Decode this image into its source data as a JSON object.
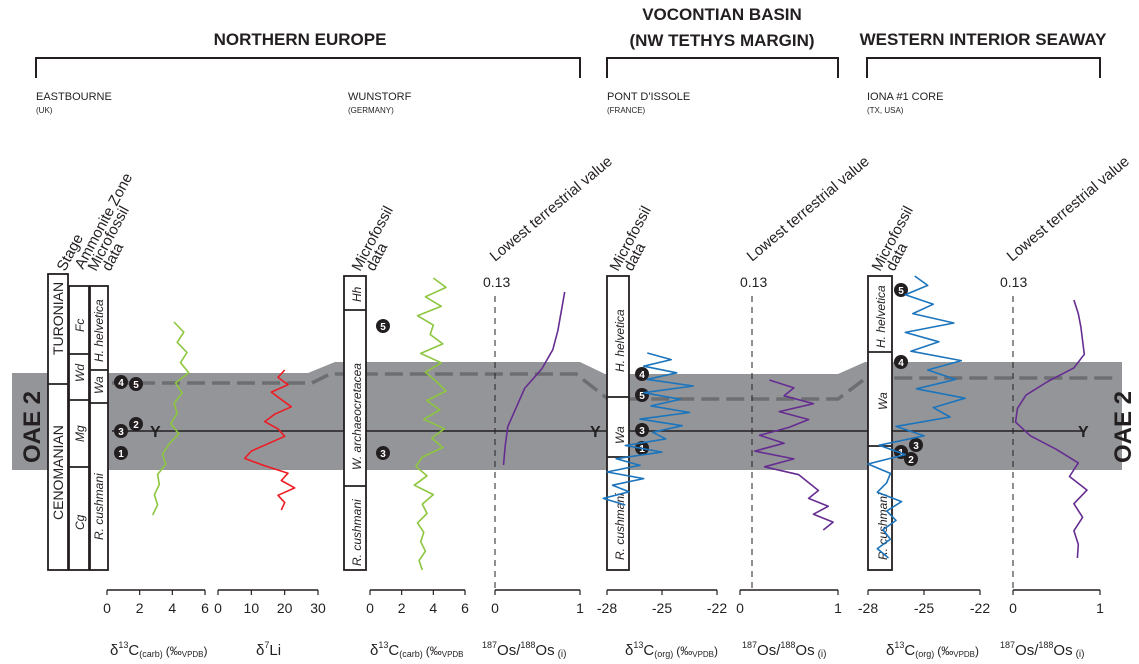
{
  "regions": {
    "northern_europe": "NORTHERN EUROPE",
    "vocontian_l1": "VOCONTIAN BASIN",
    "vocontian_l2": "(NW TETHYS MARGIN)",
    "western_interior": "WESTERN INTERIOR SEAWAY"
  },
  "sites": {
    "eastbourne": {
      "name": "EASTBOURNE",
      "country": "(UK)"
    },
    "wunstorf": {
      "name": "WUNSTORF",
      "country": "(GERMANY)"
    },
    "pont": {
      "name": "PONT D'ISSOLE",
      "country": "(FRANCE)"
    },
    "iona": {
      "name": "IONA #1 CORE",
      "country": "(TX, USA)"
    }
  },
  "column_headers": {
    "stage": "Stage",
    "ammonite": "Ammonite Zone",
    "micro1": "Microfossil",
    "micro2": "data",
    "lowest": "Lowest terrestrial value",
    "lowest_value": "0.13"
  },
  "oae_label": "OAE 2",
  "datum_label": "Y",
  "stages": [
    "TURONIAN",
    "CENOMANIAN"
  ],
  "ammonite_zones": [
    "Fc",
    "Wd",
    "Mg",
    "Cg"
  ],
  "microfossil_zones": {
    "eastbourne": [
      "H. helvetica",
      "Wa",
      "R. cushmani"
    ],
    "wunstorf": [
      "Hh",
      "W. archaeocretacea",
      "R. cushmani"
    ],
    "pont": [
      "H. helvetica",
      "Wa",
      "R. cushmani"
    ],
    "iona": [
      "H. helvetica",
      "Wa",
      "R. cushmani"
    ]
  },
  "events": {
    "eastbourne": [
      "4",
      "5",
      "2",
      "3",
      "1"
    ],
    "wunstorf": [
      "5",
      "3"
    ],
    "pont": [
      "4",
      "5",
      "3",
      "1"
    ],
    "iona": [
      "5",
      "4",
      "1",
      "3",
      "2"
    ]
  },
  "axes": {
    "d13c_carb_ticks": [
      "0",
      "2",
      "4",
      "6"
    ],
    "d7li_ticks": [
      "0",
      "10",
      "20",
      "30"
    ],
    "os_ticks": [
      "0",
      "1"
    ],
    "d13c_org_ticks": [
      "-28",
      "-25",
      "-22"
    ],
    "d13c_carb_label": {
      "main": "δ",
      "sup": "13",
      "c": "C",
      "sub": "(carb)",
      "unit": "(‰",
      "unitsub": "VPDB",
      "close": ")"
    },
    "d7li_label": {
      "main": "δ",
      "sup": "7",
      "c": "Li"
    },
    "os_label": {
      "sup1": "187",
      "os1": "Os/",
      "sup2": "188",
      "os2": "Os",
      "sub": "(i)"
    },
    "d13c_org_label": {
      "main": "δ",
      "sup": "13",
      "c": "C",
      "sub": "(org)",
      "unit": "(‰",
      "unitsub": "VPDB",
      "close": ")"
    }
  },
  "colors": {
    "carb": "#8dc63f",
    "lithium": "#ed1c24",
    "osmium": "#662d91",
    "org": "#1c75bc",
    "band": "#939598",
    "dash": "#6d6e71"
  },
  "chart_data": [
    {
      "type": "line",
      "site": "EASTBOURNE (UK)",
      "xlabel": "δ13C (carb) (‰VPDB)",
      "xlim": [
        0,
        6
      ],
      "series": [
        {
          "x": [
            4.1,
            4.7,
            4.3,
            4.9,
            4.5,
            5.0,
            4.2,
            4.6,
            4.1,
            4.3,
            3.9,
            4.4,
            3.8,
            3.4,
            3.6,
            3.1,
            3.2,
            2.9,
            3.1,
            2.8
          ]
        }
      ]
    },
    {
      "type": "line",
      "site": "EASTBOURNE (UK)",
      "xlabel": "δ7Li",
      "xlim": [
        0,
        30
      ],
      "series": [
        {
          "x": [
            20,
            18,
            21,
            16,
            19,
            22,
            17,
            14,
            18,
            20,
            15,
            10,
            8,
            14,
            21,
            19,
            23,
            18,
            20,
            19
          ]
        }
      ]
    },
    {
      "type": "line",
      "site": "WUNSTORF (GERMANY)",
      "xlabel": "δ13C (carb) (‰VPDB)",
      "xlim": [
        0,
        6
      ],
      "series": [
        {
          "x": [
            4.0,
            4.8,
            3.5,
            4.5,
            3.0,
            4.0,
            3.8,
            4.6,
            3.2,
            4.5,
            3.5,
            4.2,
            4.8,
            3.6,
            4.4,
            3.4,
            4.7,
            3.9,
            4.6,
            3.3,
            2.9,
            3.6,
            2.8,
            4.0,
            3.3,
            3.6,
            3.0,
            3.4,
            3.2,
            3.5,
            3.1,
            3.3
          ]
        }
      ]
    },
    {
      "type": "line",
      "site": "WUNSTORF (GERMANY)",
      "xlabel": "187Os/188Os (i)",
      "xlim": [
        0,
        1
      ],
      "series": [
        {
          "x": [
            0.82,
            0.78,
            0.74,
            0.68,
            0.55,
            0.35,
            0.25,
            0.15,
            0.12,
            0.1
          ]
        }
      ]
    },
    {
      "type": "line",
      "site": "PONT D'ISSOLE (FRANCE)",
      "xlabel": "δ13C (org) (‰VPDB)",
      "xlim": [
        -28,
        -22
      ],
      "series": [
        {
          "x": [
            -25.8,
            -24.5,
            -26.0,
            -24.2,
            -25.8,
            -23.3,
            -26.0,
            -24.0,
            -25.6,
            -23.5,
            -26.2,
            -23.9,
            -25.5,
            -24.8,
            -27.0,
            -25.0,
            -27.5,
            -26.2,
            -28.0,
            -26.0,
            -27.7,
            -26.8,
            -28.2,
            -27.0
          ]
        }
      ]
    },
    {
      "type": "line",
      "site": "PONT D'ISSOLE (FRANCE)",
      "xlabel": "187Os/188Os (i)",
      "xlim": [
        0,
        1
      ],
      "series": [
        {
          "x": [
            0.3,
            0.55,
            0.45,
            0.75,
            0.4,
            0.7,
            0.5,
            0.2,
            0.45,
            0.15,
            0.55,
            0.25,
            0.6,
            0.7,
            0.8,
            0.7,
            0.9,
            0.75,
            0.95,
            0.85
          ]
        }
      ]
    },
    {
      "type": "line",
      "site": "IONA #1 CORE (TX, USA)",
      "xlabel": "δ13C (org) (‰VPDB)",
      "xlim": [
        -28,
        -22
      ],
      "series": [
        {
          "x": [
            -25.5,
            -24.8,
            -26.0,
            -24.5,
            -25.6,
            -23.4,
            -26.0,
            -24.2,
            -25.7,
            -23.0,
            -24.8,
            -23.3,
            -25.4,
            -22.8,
            -24.5,
            -23.6,
            -26.5,
            -25.0,
            -27.4,
            -26.0,
            -28.0,
            -26.8,
            -27.0,
            -27.5,
            -26.2,
            -27.0,
            -26.5,
            -27.2,
            -26.8,
            -27.5,
            -26.9
          ]
        }
      ]
    },
    {
      "type": "line",
      "site": "IONA #1 CORE (TX, USA)",
      "xlabel": "187Os/188Os (i)",
      "xlim": [
        0,
        1
      ],
      "series": [
        {
          "x": [
            0.7,
            0.75,
            0.78,
            0.8,
            0.82,
            0.7,
            0.4,
            0.15,
            0.05,
            0.03,
            0.2,
            0.5,
            0.75,
            0.65,
            0.85,
            0.7,
            0.8,
            0.7,
            0.75,
            0.74
          ]
        }
      ]
    }
  ]
}
